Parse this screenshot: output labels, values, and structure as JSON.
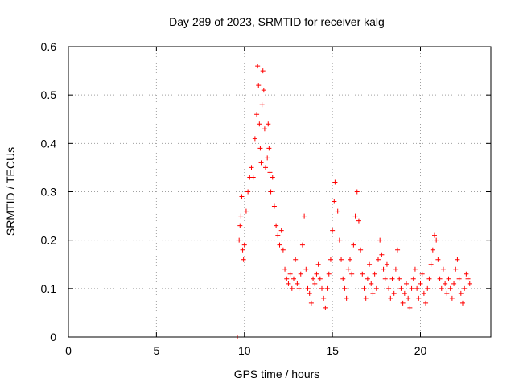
{
  "chart_data": {
    "type": "scatter",
    "title": "Day 289 of 2023, SRMTID for receiver kalg",
    "xlabel": "GPS time / hours",
    "ylabel": "SRMTID / TECUs",
    "xlim": [
      0,
      24
    ],
    "ylim": [
      0,
      0.6
    ],
    "x_ticks": [
      0,
      5,
      10,
      15,
      20
    ],
    "x_tick_labels": [
      "0",
      "5",
      "10",
      "15",
      "20"
    ],
    "y_ticks": [
      0,
      0.1,
      0.2,
      0.3,
      0.4,
      0.5,
      0.6
    ],
    "y_tick_labels": [
      "0",
      "0.1",
      "0.2",
      "0.3",
      "0.4",
      "0.5",
      "0.6"
    ],
    "grid": true,
    "marker": "plus",
    "color": "#ff0000",
    "series": [
      {
        "name": "SRMTID",
        "points": [
          [
            9.6,
            0.0
          ],
          [
            9.7,
            0.2
          ],
          [
            9.75,
            0.23
          ],
          [
            9.8,
            0.25
          ],
          [
            9.85,
            0.29
          ],
          [
            9.9,
            0.18
          ],
          [
            9.95,
            0.16
          ],
          [
            10.0,
            0.19
          ],
          [
            10.1,
            0.26
          ],
          [
            10.2,
            0.3
          ],
          [
            10.3,
            0.33
          ],
          [
            10.4,
            0.35
          ],
          [
            10.5,
            0.33
          ],
          [
            10.6,
            0.41
          ],
          [
            10.7,
            0.46
          ],
          [
            10.75,
            0.56
          ],
          [
            10.8,
            0.52
          ],
          [
            10.85,
            0.44
          ],
          [
            10.9,
            0.39
          ],
          [
            10.95,
            0.36
          ],
          [
            11.0,
            0.48
          ],
          [
            11.05,
            0.55
          ],
          [
            11.1,
            0.51
          ],
          [
            11.15,
            0.43
          ],
          [
            11.2,
            0.35
          ],
          [
            11.3,
            0.37
          ],
          [
            11.35,
            0.44
          ],
          [
            11.4,
            0.39
          ],
          [
            11.45,
            0.34
          ],
          [
            11.5,
            0.3
          ],
          [
            11.6,
            0.33
          ],
          [
            11.7,
            0.27
          ],
          [
            11.8,
            0.23
          ],
          [
            11.9,
            0.21
          ],
          [
            12.0,
            0.19
          ],
          [
            12.1,
            0.22
          ],
          [
            12.2,
            0.18
          ],
          [
            12.3,
            0.14
          ],
          [
            12.4,
            0.12
          ],
          [
            12.5,
            0.11
          ],
          [
            12.6,
            0.13
          ],
          [
            12.7,
            0.1
          ],
          [
            12.8,
            0.12
          ],
          [
            12.9,
            0.16
          ],
          [
            13.0,
            0.11
          ],
          [
            13.1,
            0.1
          ],
          [
            13.2,
            0.13
          ],
          [
            13.3,
            0.19
          ],
          [
            13.4,
            0.25
          ],
          [
            13.5,
            0.14
          ],
          [
            13.6,
            0.1
          ],
          [
            13.7,
            0.09
          ],
          [
            13.8,
            0.07
          ],
          [
            13.9,
            0.12
          ],
          [
            14.0,
            0.11
          ],
          [
            14.1,
            0.13
          ],
          [
            14.2,
            0.15
          ],
          [
            14.3,
            0.12
          ],
          [
            14.4,
            0.1
          ],
          [
            14.5,
            0.08
          ],
          [
            14.6,
            0.06
          ],
          [
            14.7,
            0.1
          ],
          [
            14.8,
            0.13
          ],
          [
            14.9,
            0.16
          ],
          [
            15.0,
            0.22
          ],
          [
            15.1,
            0.28
          ],
          [
            15.15,
            0.32
          ],
          [
            15.2,
            0.31
          ],
          [
            15.3,
            0.26
          ],
          [
            15.4,
            0.2
          ],
          [
            15.5,
            0.16
          ],
          [
            15.6,
            0.12
          ],
          [
            15.7,
            0.1
          ],
          [
            15.8,
            0.08
          ],
          [
            15.9,
            0.14
          ],
          [
            16.0,
            0.16
          ],
          [
            16.1,
            0.13
          ],
          [
            16.2,
            0.19
          ],
          [
            16.3,
            0.25
          ],
          [
            16.4,
            0.3
          ],
          [
            16.5,
            0.24
          ],
          [
            16.6,
            0.18
          ],
          [
            16.7,
            0.13
          ],
          [
            16.8,
            0.1
          ],
          [
            16.9,
            0.08
          ],
          [
            17.0,
            0.12
          ],
          [
            17.1,
            0.15
          ],
          [
            17.2,
            0.11
          ],
          [
            17.3,
            0.09
          ],
          [
            17.4,
            0.13
          ],
          [
            17.5,
            0.1
          ],
          [
            17.6,
            0.16
          ],
          [
            17.7,
            0.2
          ],
          [
            17.8,
            0.17
          ],
          [
            17.9,
            0.14
          ],
          [
            18.0,
            0.12
          ],
          [
            18.1,
            0.15
          ],
          [
            18.2,
            0.1
          ],
          [
            18.3,
            0.08
          ],
          [
            18.4,
            0.12
          ],
          [
            18.5,
            0.09
          ],
          [
            18.6,
            0.14
          ],
          [
            18.7,
            0.18
          ],
          [
            18.8,
            0.12
          ],
          [
            18.9,
            0.1
          ],
          [
            19.0,
            0.07
          ],
          [
            19.1,
            0.09
          ],
          [
            19.2,
            0.11
          ],
          [
            19.3,
            0.08
          ],
          [
            19.4,
            0.06
          ],
          [
            19.5,
            0.1
          ],
          [
            19.6,
            0.12
          ],
          [
            19.7,
            0.14
          ],
          [
            19.8,
            0.1
          ],
          [
            19.9,
            0.08
          ],
          [
            20.0,
            0.11
          ],
          [
            20.1,
            0.13
          ],
          [
            20.2,
            0.09
          ],
          [
            20.3,
            0.07
          ],
          [
            20.4,
            0.1
          ],
          [
            20.5,
            0.12
          ],
          [
            20.6,
            0.15
          ],
          [
            20.7,
            0.18
          ],
          [
            20.8,
            0.21
          ],
          [
            20.9,
            0.2
          ],
          [
            21.0,
            0.16
          ],
          [
            21.1,
            0.12
          ],
          [
            21.2,
            0.1
          ],
          [
            21.3,
            0.14
          ],
          [
            21.4,
            0.11
          ],
          [
            21.5,
            0.09
          ],
          [
            21.6,
            0.12
          ],
          [
            21.7,
            0.1
          ],
          [
            21.8,
            0.08
          ],
          [
            21.9,
            0.11
          ],
          [
            22.0,
            0.14
          ],
          [
            22.1,
            0.16
          ],
          [
            22.2,
            0.12
          ],
          [
            22.3,
            0.09
          ],
          [
            22.4,
            0.07
          ],
          [
            22.5,
            0.1
          ],
          [
            22.6,
            0.13
          ],
          [
            22.7,
            0.12
          ],
          [
            22.8,
            0.11
          ]
        ]
      }
    ]
  }
}
